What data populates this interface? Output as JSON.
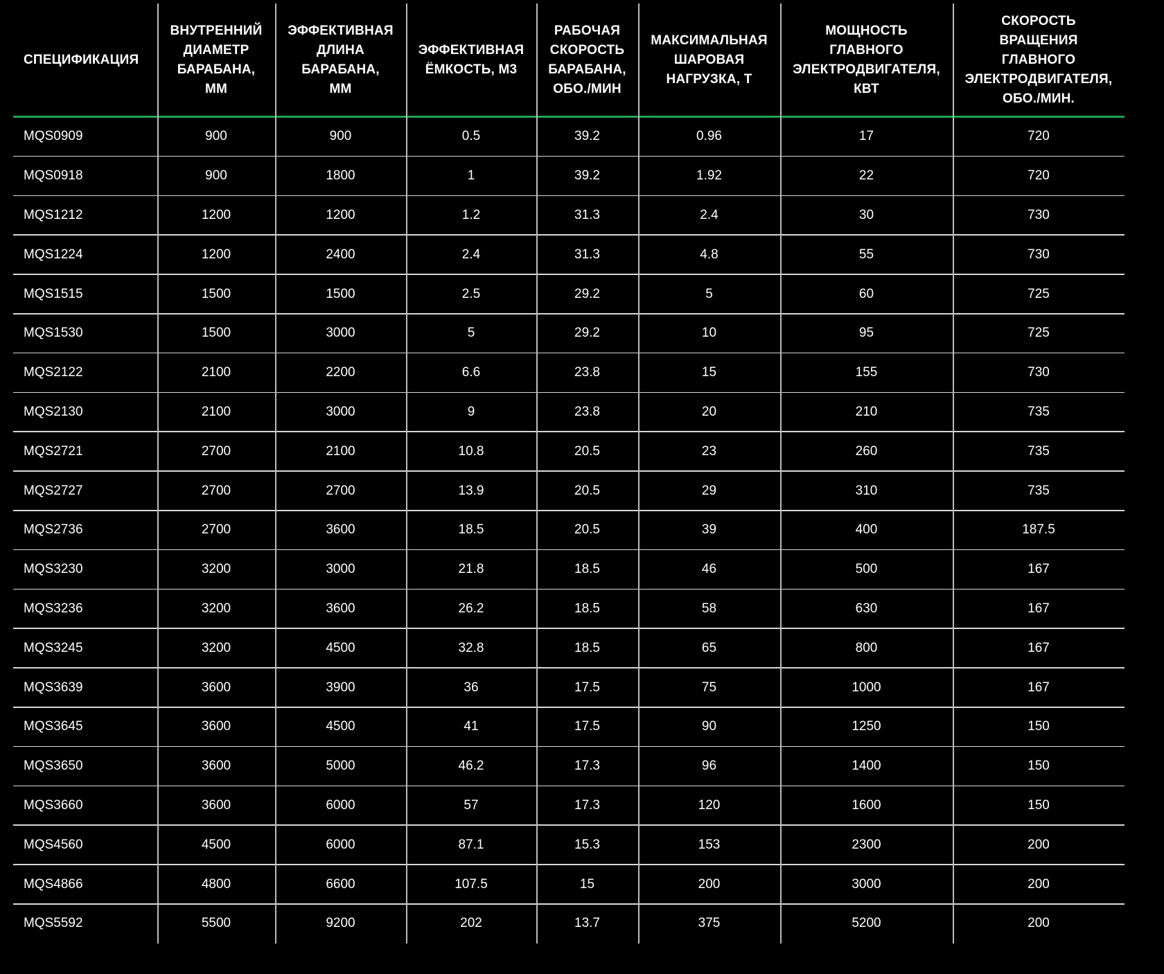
{
  "table": {
    "headers": [
      [
        "СПЕЦИФИКАЦИЯ"
      ],
      [
        "ВНУТРЕННИЙ",
        "ДИАМЕТР",
        "БАРАБАНА,",
        "ММ"
      ],
      [
        "ЭФФЕКТИВНАЯ",
        "ДЛИНА",
        "БАРАБАНА,",
        "ММ"
      ],
      [
        "ЭФФЕКТИВНАЯ",
        "ЁМКОСТЬ, М3"
      ],
      [
        "РАБОЧАЯ",
        "СКОРОСТЬ",
        "БАРАБАНА,",
        "ОБО./МИН"
      ],
      [
        "МАКСИМАЛЬНАЯ",
        "ШАРОВАЯ",
        "НАГРУЗКА, Т"
      ],
      [
        "МОЩНОСТЬ",
        "ГЛАВНОГО",
        "ЭЛЕКТРОДВИГАТЕЛЯ,",
        "КВТ"
      ],
      [
        "СКОРОСТЬ",
        "ВРАЩЕНИЯ",
        "ГЛАВНОГО",
        "ЭЛЕКТРОДВИГАТЕЛЯ,",
        "ОБО./МИН."
      ]
    ],
    "rows": [
      [
        "MQS0909",
        "900",
        "900",
        "0.5",
        "39.2",
        "0.96",
        "17",
        "720"
      ],
      [
        "MQS0918",
        "900",
        "1800",
        "1",
        "39.2",
        "1.92",
        "22",
        "720"
      ],
      [
        "MQS1212",
        "1200",
        "1200",
        "1.2",
        "31.3",
        "2.4",
        "30",
        "730"
      ],
      [
        "MQS1224",
        "1200",
        "2400",
        "2.4",
        "31.3",
        "4.8",
        "55",
        "730"
      ],
      [
        "MQS1515",
        "1500",
        "1500",
        "2.5",
        "29.2",
        "5",
        "60",
        "725"
      ],
      [
        "MQS1530",
        "1500",
        "3000",
        "5",
        "29.2",
        "10",
        "95",
        "725"
      ],
      [
        "MQS2122",
        "2100",
        "2200",
        "6.6",
        "23.8",
        "15",
        "155",
        "730"
      ],
      [
        "MQS2130",
        "2100",
        "3000",
        "9",
        "23.8",
        "20",
        "210",
        "735"
      ],
      [
        "MQS2721",
        "2700",
        "2100",
        "10.8",
        "20.5",
        "23",
        "260",
        "735"
      ],
      [
        "MQS2727",
        "2700",
        "2700",
        "13.9",
        "20.5",
        "29",
        "310",
        "735"
      ],
      [
        "MQS2736",
        "2700",
        "3600",
        "18.5",
        "20.5",
        "39",
        "400",
        "187.5"
      ],
      [
        "MQS3230",
        "3200",
        "3000",
        "21.8",
        "18.5",
        "46",
        "500",
        "167"
      ],
      [
        "MQS3236",
        "3200",
        "3600",
        "26.2",
        "18.5",
        "58",
        "630",
        "167"
      ],
      [
        "MQS3245",
        "3200",
        "4500",
        "32.8",
        "18.5",
        "65",
        "800",
        "167"
      ],
      [
        "MQS3639",
        "3600",
        "3900",
        "36",
        "17.5",
        "75",
        "1000",
        "167"
      ],
      [
        "MQS3645",
        "3600",
        "4500",
        "41",
        "17.5",
        "90",
        "1250",
        "150"
      ],
      [
        "MQS3650",
        "3600",
        "5000",
        "46.2",
        "17.3",
        "96",
        "1400",
        "150"
      ],
      [
        "MQS3660",
        "3600",
        "6000",
        "57",
        "17.3",
        "120",
        "1600",
        "150"
      ],
      [
        "MQS4560",
        "4500",
        "6000",
        "87.1",
        "15.3",
        "153",
        "2300",
        "200"
      ],
      [
        "MQS4866",
        "4800",
        "6600",
        "107.5",
        "15",
        "200",
        "3000",
        "200"
      ],
      [
        "MQS5592",
        "5500",
        "9200",
        "202",
        "13.7",
        "375",
        "5200",
        "200"
      ]
    ]
  }
}
